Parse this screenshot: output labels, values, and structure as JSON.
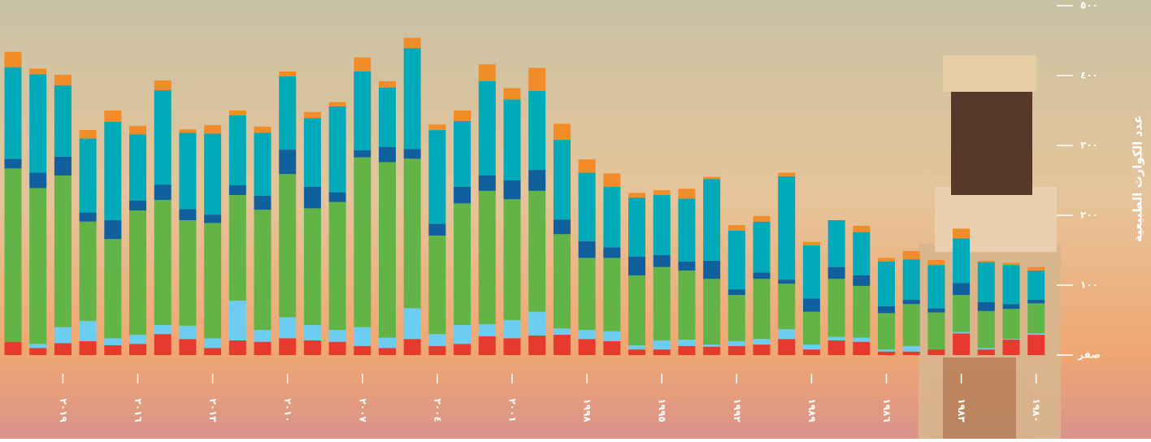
{
  "chart_data": {
    "type": "stacked_bar",
    "ylabel": "عدد الكوارث الطبيعية",
    "categories": [
      null,
      null,
      "٢٠١٩",
      null,
      null,
      "٢٠١٦",
      null,
      null,
      "٢٠١٣",
      null,
      null,
      "٢٠١٠",
      null,
      null,
      "٢٠٠٧",
      null,
      null,
      "٢٠٠٤",
      null,
      null,
      "٢٠٠١",
      null,
      null,
      "١٩٩٨",
      null,
      null,
      "١٩٩٥",
      null,
      null,
      "١٩٩٢",
      null,
      null,
      "١٩٨٩",
      null,
      null,
      "١٩٨٦",
      null,
      null,
      "١٩٨٣",
      null,
      null,
      "١٩٨٠"
    ],
    "ylim": [
      0,
      500
    ],
    "yticks": [
      {
        "value": 0,
        "label": "صفر"
      },
      {
        "value": 100,
        "label": "١٠٠"
      },
      {
        "value": 200,
        "label": "٢٠٠"
      },
      {
        "value": 300,
        "label": "٣٠٠"
      },
      {
        "value": 400,
        "label": "٤٠٠"
      },
      {
        "value": 500,
        "label": "٥٠٠"
      }
    ],
    "series": [
      {
        "color": "#e63a2e",
        "values": [
          19,
          10,
          17,
          20,
          14,
          16,
          30,
          23,
          10,
          21,
          19,
          24,
          21,
          19,
          13,
          10,
          23,
          13,
          16,
          27,
          24,
          28,
          29,
          23,
          20,
          8,
          8,
          13,
          12,
          13,
          15,
          23,
          8,
          21,
          19,
          5,
          5,
          8,
          31,
          8,
          22,
          29
        ]
      },
      {
        "color": "#6ccdf0",
        "values": [
          0,
          6,
          23,
          29,
          10,
          13,
          13,
          19,
          14,
          57,
          17,
          30,
          22,
          17,
          27,
          15,
          44,
          17,
          27,
          17,
          26,
          34,
          9,
          13,
          14,
          6,
          13,
          9,
          3,
          7,
          8,
          14,
          7,
          5,
          6,
          3,
          8,
          0,
          2,
          2,
          1,
          2
        ]
      },
      {
        "color": "#62b446",
        "values": [
          248,
          223,
          217,
          142,
          142,
          178,
          179,
          151,
          165,
          151,
          172,
          205,
          167,
          183,
          243,
          251,
          214,
          141,
          174,
          191,
          173,
          173,
          135,
          103,
          105,
          100,
          105,
          99,
          94,
          66,
          86,
          65,
          47,
          83,
          74,
          52,
          60,
          53,
          53,
          53,
          43,
          43
        ]
      },
      {
        "color": "#10609e",
        "values": [
          14,
          22,
          27,
          13,
          27,
          14,
          22,
          16,
          12,
          14,
          20,
          35,
          31,
          14,
          10,
          22,
          14,
          17,
          24,
          22,
          27,
          30,
          21,
          24,
          15,
          27,
          17,
          13,
          26,
          8,
          9,
          6,
          19,
          17,
          15,
          10,
          6,
          6,
          17,
          13,
          7,
          5
        ]
      },
      {
        "color": "#00aab8",
        "values": [
          131,
          141,
          102,
          106,
          141,
          95,
          135,
          109,
          116,
          100,
          90,
          105,
          98,
          123,
          113,
          85,
          144,
          134,
          94,
          135,
          116,
          113,
          114,
          98,
          87,
          84,
          86,
          90,
          117,
          84,
          73,
          148,
          76,
          67,
          62,
          64,
          58,
          62,
          64,
          57,
          56,
          42
        ]
      },
      {
        "color": "#f28c28",
        "values": [
          22,
          8,
          15,
          12,
          16,
          12,
          14,
          5,
          12,
          7,
          9,
          7,
          9,
          6,
          20,
          9,
          15,
          8,
          15,
          24,
          16,
          33,
          23,
          19,
          19,
          7,
          7,
          14,
          3,
          8,
          8,
          5,
          5,
          0,
          9,
          5,
          12,
          7,
          14,
          2,
          3,
          5
        ]
      }
    ]
  }
}
